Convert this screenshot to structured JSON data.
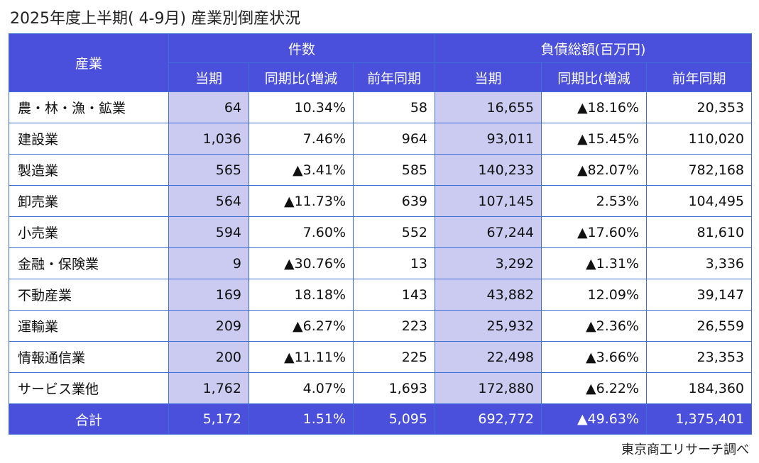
{
  "title": "2025年度上半期( 4-9月) 産業別倒産状況",
  "source": "東京商工リサーチ調べ",
  "chart_data": {
    "type": "table",
    "title": "2025年度上半期( 4-9月) 産業別倒産状況",
    "header": {
      "industry": "産業",
      "group_count": "件数",
      "group_debt": "負債総額(百万円)",
      "sub": [
        "当期",
        "前年同期比(増減率)",
        "前年同期",
        "当期",
        "前年同期比(増減率)",
        "前年同期"
      ],
      "sub_display": [
        "当期",
        "同期比(増減",
        "前年同期",
        "当期",
        "同期比(増減",
        "前年同期"
      ]
    },
    "rows": [
      [
        "農・林・漁・鉱業",
        "64",
        "10.34%",
        "58",
        "16,655",
        "▲18.16%",
        "20,353"
      ],
      [
        "建設業",
        "1,036",
        "7.46%",
        "964",
        "93,011",
        "▲15.45%",
        "110,020"
      ],
      [
        "製造業",
        "565",
        "▲3.41%",
        "585",
        "140,233",
        "▲82.07%",
        "782,168"
      ],
      [
        "卸売業",
        "564",
        "▲11.73%",
        "639",
        "107,145",
        "2.53%",
        "104,495"
      ],
      [
        "小売業",
        "594",
        "7.60%",
        "552",
        "67,244",
        "▲17.60%",
        "81,610"
      ],
      [
        "金融・保険業",
        "9",
        "▲30.76%",
        "13",
        "3,292",
        "▲1.31%",
        "3,336"
      ],
      [
        "不動産業",
        "169",
        "18.18%",
        "143",
        "43,882",
        "12.09%",
        "39,147"
      ],
      [
        "運輸業",
        "209",
        "▲6.27%",
        "223",
        "25,932",
        "▲2.36%",
        "26,559"
      ],
      [
        "情報通信業",
        "200",
        "▲11.11%",
        "225",
        "22,498",
        "▲3.66%",
        "23,353"
      ],
      [
        "サービス業他",
        "1,762",
        "4.07%",
        "1,693",
        "172,880",
        "▲6.22%",
        "184,360"
      ]
    ],
    "total": [
      "合計",
      "5,172",
      "1.51%",
      "5,095",
      "692,772",
      "▲49.63%",
      "1,375,401"
    ]
  }
}
